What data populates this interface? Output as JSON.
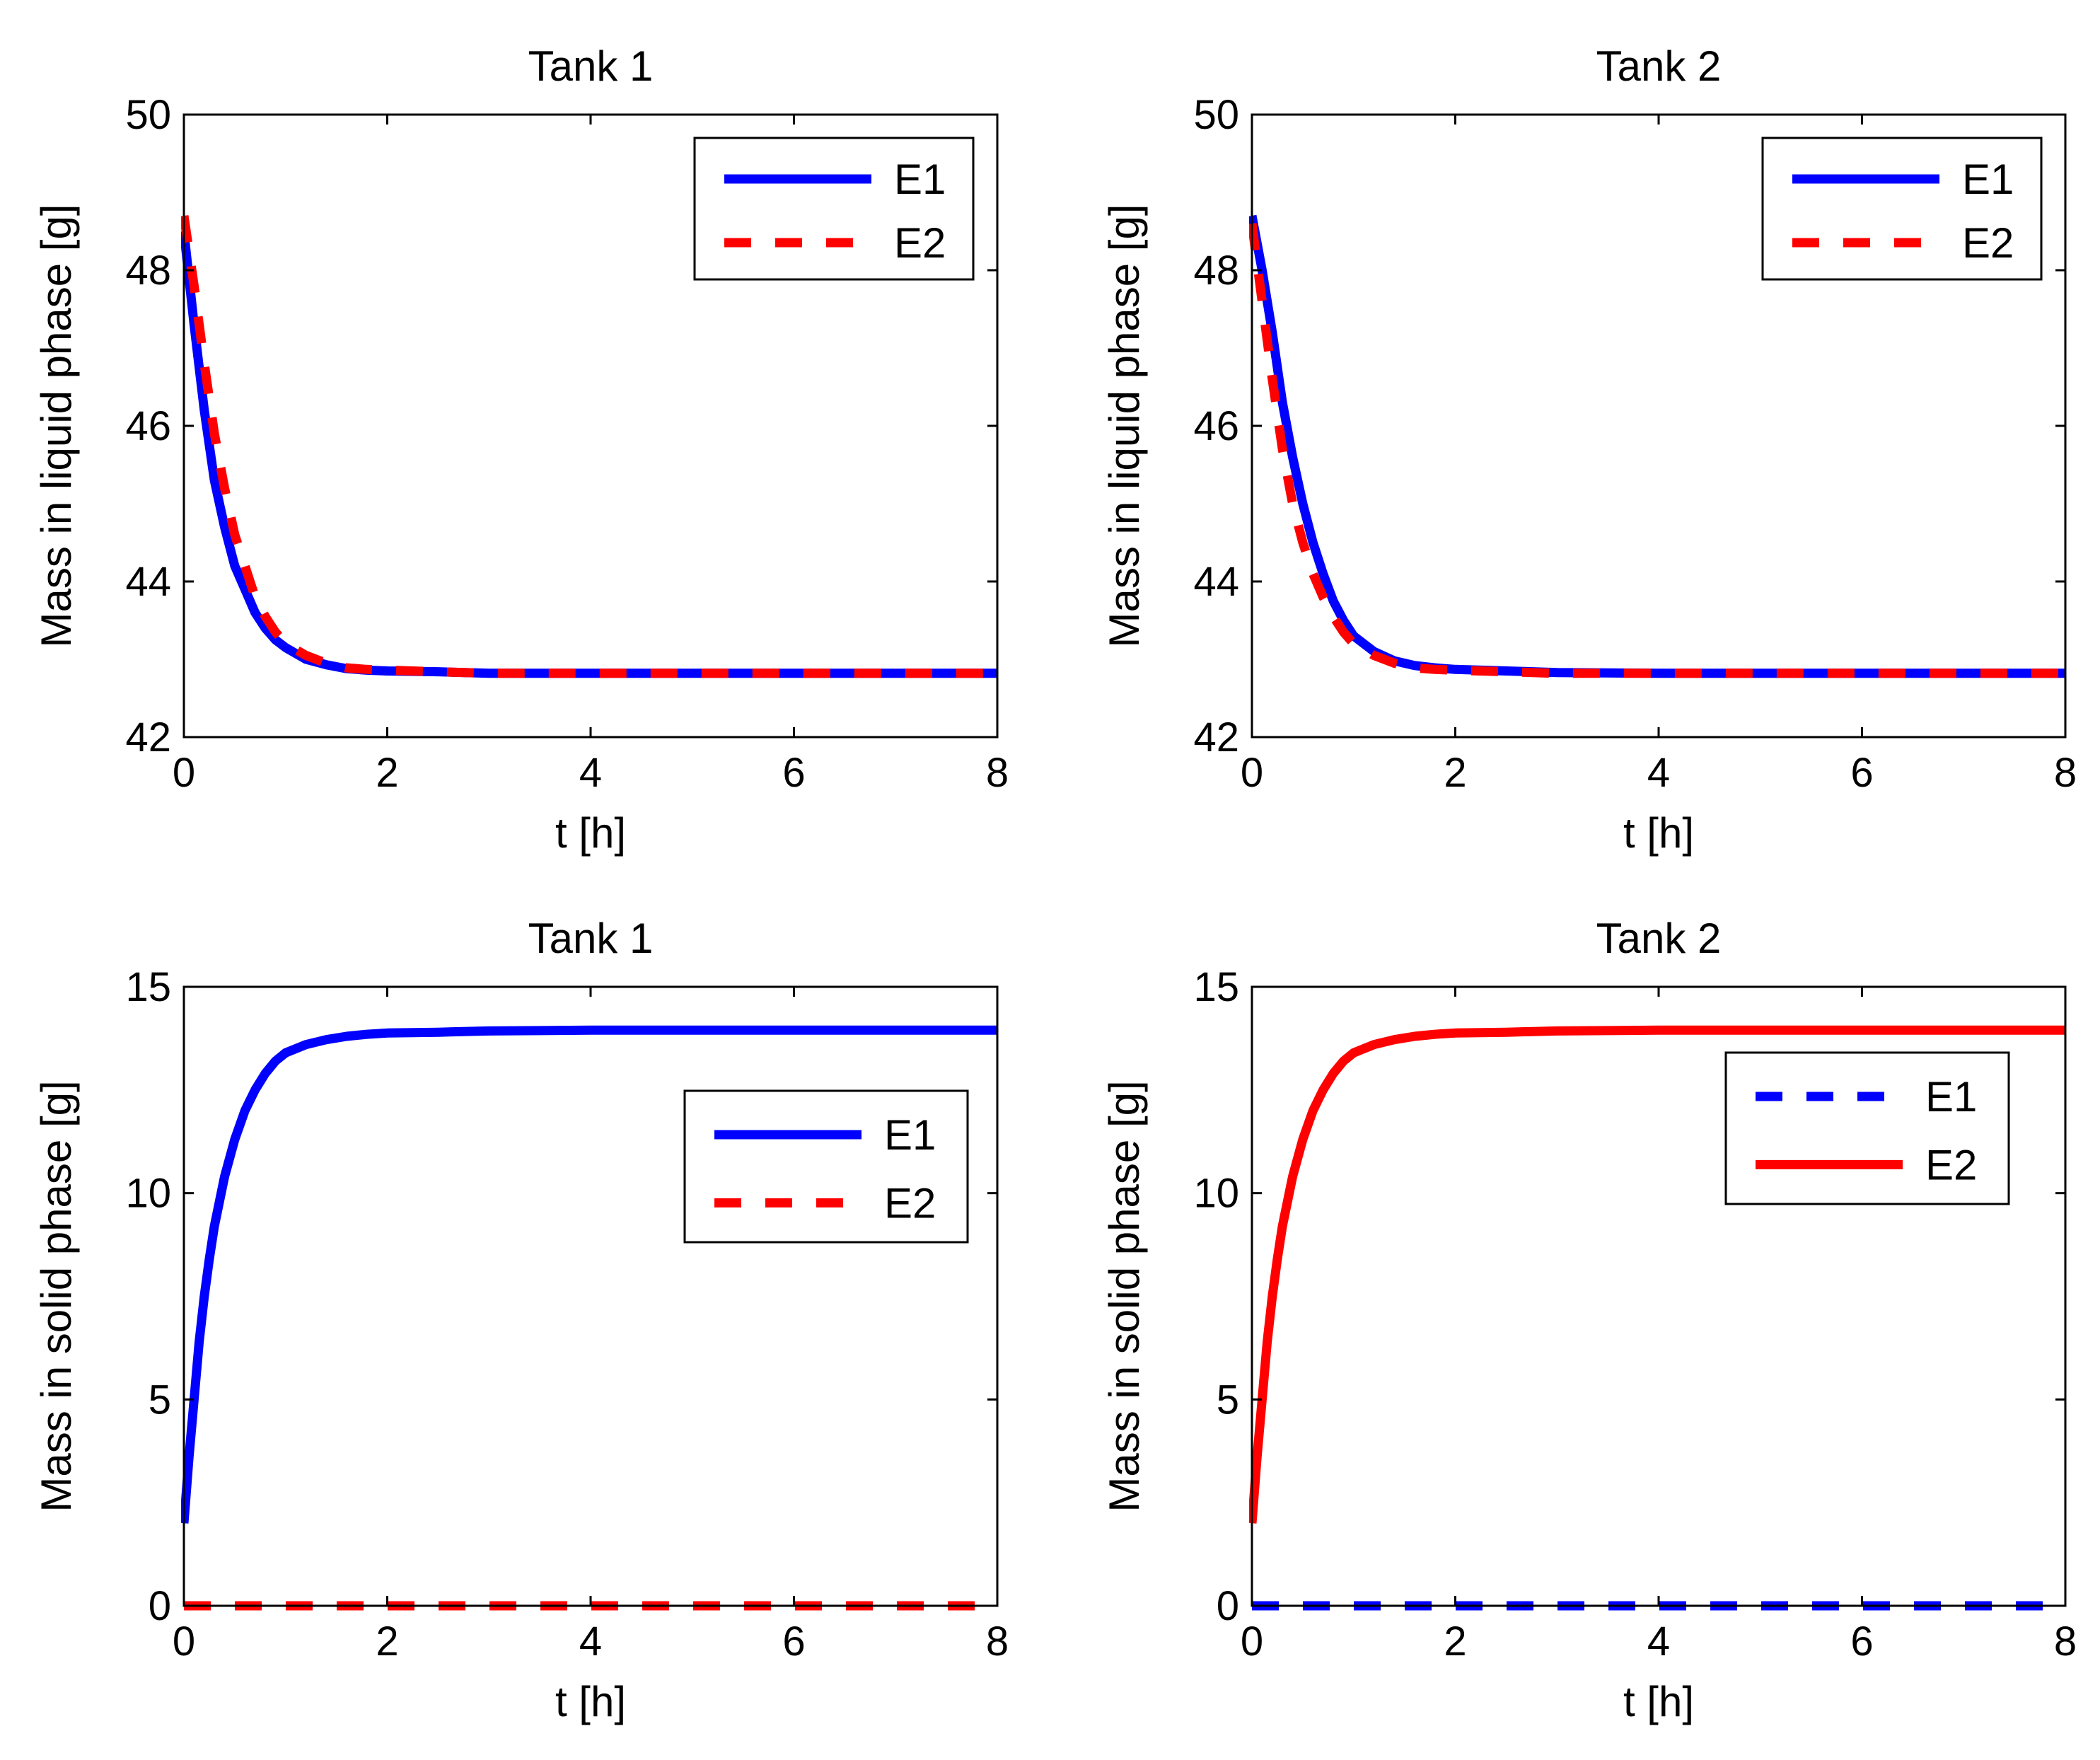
{
  "chart_data": [
    {
      "type": "line",
      "title": "Tank 1",
      "xlabel": "t [h]",
      "ylabel": "Mass in liquid phase [g]",
      "xlim": [
        0,
        8
      ],
      "ylim": [
        42,
        50
      ],
      "xticks": [
        0,
        2,
        4,
        6,
        8
      ],
      "yticks": [
        42,
        44,
        46,
        48,
        50
      ],
      "legend_position": "top-right",
      "series": [
        {
          "name": "E1",
          "color": "#0000ff",
          "style": "solid",
          "x": [
            0,
            0.1,
            0.2,
            0.3,
            0.4,
            0.5,
            0.6,
            0.7,
            0.8,
            0.9,
            1.0,
            1.2,
            1.4,
            1.6,
            1.8,
            2.0,
            2.5,
            3.0,
            4.0,
            5.0,
            6.0,
            7.0,
            8.0
          ],
          "values": [
            48.5,
            47.3,
            46.2,
            45.3,
            44.7,
            44.2,
            43.9,
            43.6,
            43.4,
            43.25,
            43.15,
            43.0,
            42.93,
            42.88,
            42.86,
            42.85,
            42.84,
            42.82,
            42.82,
            42.82,
            42.82,
            42.82,
            42.82
          ]
        },
        {
          "name": "E2",
          "color": "#ff0000",
          "style": "dashed",
          "x": [
            0,
            0.1,
            0.2,
            0.3,
            0.4,
            0.5,
            0.6,
            0.7,
            0.8,
            0.9,
            1.0,
            1.2,
            1.4,
            1.6,
            1.8,
            2.0,
            2.5,
            3.0,
            4.0,
            5.0,
            6.0,
            7.0,
            8.0
          ],
          "values": [
            48.7,
            47.8,
            46.8,
            45.9,
            45.2,
            44.6,
            44.2,
            43.8,
            43.55,
            43.35,
            43.2,
            43.05,
            42.95,
            42.89,
            42.87,
            42.86,
            42.84,
            42.82,
            42.82,
            42.82,
            42.82,
            42.82,
            42.82
          ]
        }
      ]
    },
    {
      "type": "line",
      "title": "Tank 2",
      "xlabel": "t [h]",
      "ylabel": "Mass in liquid phase [g]",
      "xlim": [
        0,
        8
      ],
      "ylim": [
        42,
        50
      ],
      "xticks": [
        0,
        2,
        4,
        6,
        8
      ],
      "yticks": [
        42,
        44,
        46,
        48,
        50
      ],
      "legend_position": "top-right",
      "series": [
        {
          "name": "E1",
          "color": "#0000ff",
          "style": "solid",
          "x": [
            0,
            0.1,
            0.2,
            0.3,
            0.4,
            0.5,
            0.6,
            0.7,
            0.8,
            0.9,
            1.0,
            1.2,
            1.4,
            1.6,
            1.8,
            2.0,
            2.5,
            3.0,
            4.0,
            5.0,
            6.0,
            7.0,
            8.0
          ],
          "values": [
            48.7,
            48.0,
            47.2,
            46.3,
            45.6,
            45.0,
            44.5,
            44.1,
            43.75,
            43.5,
            43.3,
            43.1,
            42.98,
            42.92,
            42.89,
            42.87,
            42.85,
            42.83,
            42.82,
            42.82,
            42.82,
            42.82,
            42.82
          ]
        },
        {
          "name": "E2",
          "color": "#ff0000",
          "style": "dashed",
          "x": [
            0,
            0.1,
            0.2,
            0.3,
            0.4,
            0.5,
            0.6,
            0.7,
            0.8,
            0.9,
            1.0,
            1.2,
            1.4,
            1.6,
            1.8,
            2.0,
            2.5,
            3.0,
            4.0,
            5.0,
            6.0,
            7.0,
            8.0
          ],
          "values": [
            48.6,
            47.6,
            46.6,
            45.7,
            45.0,
            44.5,
            44.1,
            43.8,
            43.55,
            43.35,
            43.2,
            43.05,
            42.95,
            42.89,
            42.87,
            42.86,
            42.84,
            42.82,
            42.82,
            42.82,
            42.82,
            42.82,
            42.82
          ]
        }
      ]
    },
    {
      "type": "line",
      "title": "Tank 1",
      "xlabel": "t [h]",
      "ylabel": "Mass in solid phase [g]",
      "xlim": [
        0,
        8
      ],
      "ylim": [
        0,
        15
      ],
      "xticks": [
        0,
        2,
        4,
        6,
        8
      ],
      "yticks": [
        0,
        5,
        10,
        15
      ],
      "legend_position": "middle-right",
      "series": [
        {
          "name": "E1",
          "color": "#0000ff",
          "style": "solid",
          "x": [
            0,
            0.05,
            0.1,
            0.15,
            0.2,
            0.25,
            0.3,
            0.35,
            0.4,
            0.5,
            0.6,
            0.7,
            0.8,
            0.9,
            1.0,
            1.2,
            1.4,
            1.6,
            1.8,
            2.0,
            2.5,
            3.0,
            4.0,
            5.0,
            6.0,
            7.0,
            8.0
          ],
          "values": [
            2.0,
            3.6,
            5.0,
            6.4,
            7.5,
            8.4,
            9.2,
            9.8,
            10.4,
            11.3,
            12.0,
            12.5,
            12.9,
            13.2,
            13.4,
            13.6,
            13.72,
            13.8,
            13.85,
            13.88,
            13.9,
            13.93,
            13.95,
            13.95,
            13.95,
            13.95,
            13.95
          ]
        },
        {
          "name": "E2",
          "color": "#ff0000",
          "style": "dashed",
          "x": [
            0,
            8
          ],
          "values": [
            0,
            0
          ]
        }
      ]
    },
    {
      "type": "line",
      "title": "Tank 2",
      "xlabel": "t [h]",
      "ylabel": "Mass in solid phase [g]",
      "xlim": [
        0,
        8
      ],
      "ylim": [
        0,
        15
      ],
      "xticks": [
        0,
        2,
        4,
        6,
        8
      ],
      "yticks": [
        0,
        5,
        10,
        15
      ],
      "legend_position": "top-right",
      "series": [
        {
          "name": "E1",
          "color": "#0000ff",
          "style": "dashed",
          "x": [
            0,
            8
          ],
          "values": [
            0,
            0
          ]
        },
        {
          "name": "E2",
          "color": "#ff0000",
          "style": "solid",
          "x": [
            0,
            0.05,
            0.1,
            0.15,
            0.2,
            0.25,
            0.3,
            0.35,
            0.4,
            0.5,
            0.6,
            0.7,
            0.8,
            0.9,
            1.0,
            1.2,
            1.4,
            1.6,
            1.8,
            2.0,
            2.5,
            3.0,
            4.0,
            5.0,
            6.0,
            7.0,
            8.0
          ],
          "values": [
            2.0,
            3.6,
            5.0,
            6.4,
            7.5,
            8.4,
            9.2,
            9.8,
            10.4,
            11.3,
            12.0,
            12.5,
            12.9,
            13.2,
            13.4,
            13.6,
            13.72,
            13.8,
            13.85,
            13.88,
            13.9,
            13.93,
            13.95,
            13.95,
            13.95,
            13.95,
            13.95
          ]
        }
      ]
    }
  ]
}
